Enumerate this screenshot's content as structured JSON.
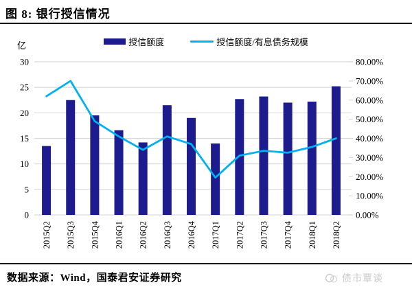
{
  "title": "图 8: 银行授信情况",
  "footer": {
    "source": "数据来源：Wind，国泰君安证券研究",
    "watermark": "债市覃谈"
  },
  "colors": {
    "bar": "#1C1C8F",
    "line": "#00B0F0",
    "grid": "#D9D9D9",
    "text": "#000000",
    "watermark": "#c9c9c9"
  },
  "chart_data": {
    "type": "bar",
    "subtype": "bar+line combo, dual axis",
    "title": "银行授信情况",
    "unit_label": "亿",
    "categories": [
      "2015Q2",
      "2015Q3",
      "2015Q4",
      "2016Q1",
      "2016Q2",
      "2016Q3",
      "2016Q4",
      "2017Q1",
      "2017Q2",
      "2017Q3",
      "2017Q4",
      "2018Q1",
      "2018Q2"
    ],
    "series": [
      {
        "name": "授信额度",
        "type": "bar",
        "axis": "left",
        "color": "#1C1C8F",
        "values": [
          13.5,
          22.5,
          19.5,
          16.6,
          14.2,
          21.5,
          19.0,
          14.0,
          22.7,
          23.2,
          22.0,
          22.2,
          25.2
        ]
      },
      {
        "name": "授信额度/有息债务规模",
        "type": "line",
        "axis": "right",
        "color": "#00B0F0",
        "values": [
          62,
          70,
          49,
          41,
          34,
          41,
          37,
          19.5,
          31,
          33.5,
          32.5,
          35.5,
          40
        ]
      }
    ],
    "left_axis": {
      "min": 0,
      "max": 30,
      "step": 5,
      "ticks": [
        "0",
        "5",
        "10",
        "15",
        "20",
        "25",
        "30"
      ]
    },
    "right_axis": {
      "min": 0,
      "max": 80,
      "step": 10,
      "ticks": [
        "0.00%",
        "10.00%",
        "20.00%",
        "30.00%",
        "40.00%",
        "50.00%",
        "60.00%",
        "70.00%",
        "80.00%"
      ]
    },
    "grid": true,
    "grid_color": "#D9D9D9",
    "legend_position": "top-center",
    "x_labels_rotation": -90
  }
}
